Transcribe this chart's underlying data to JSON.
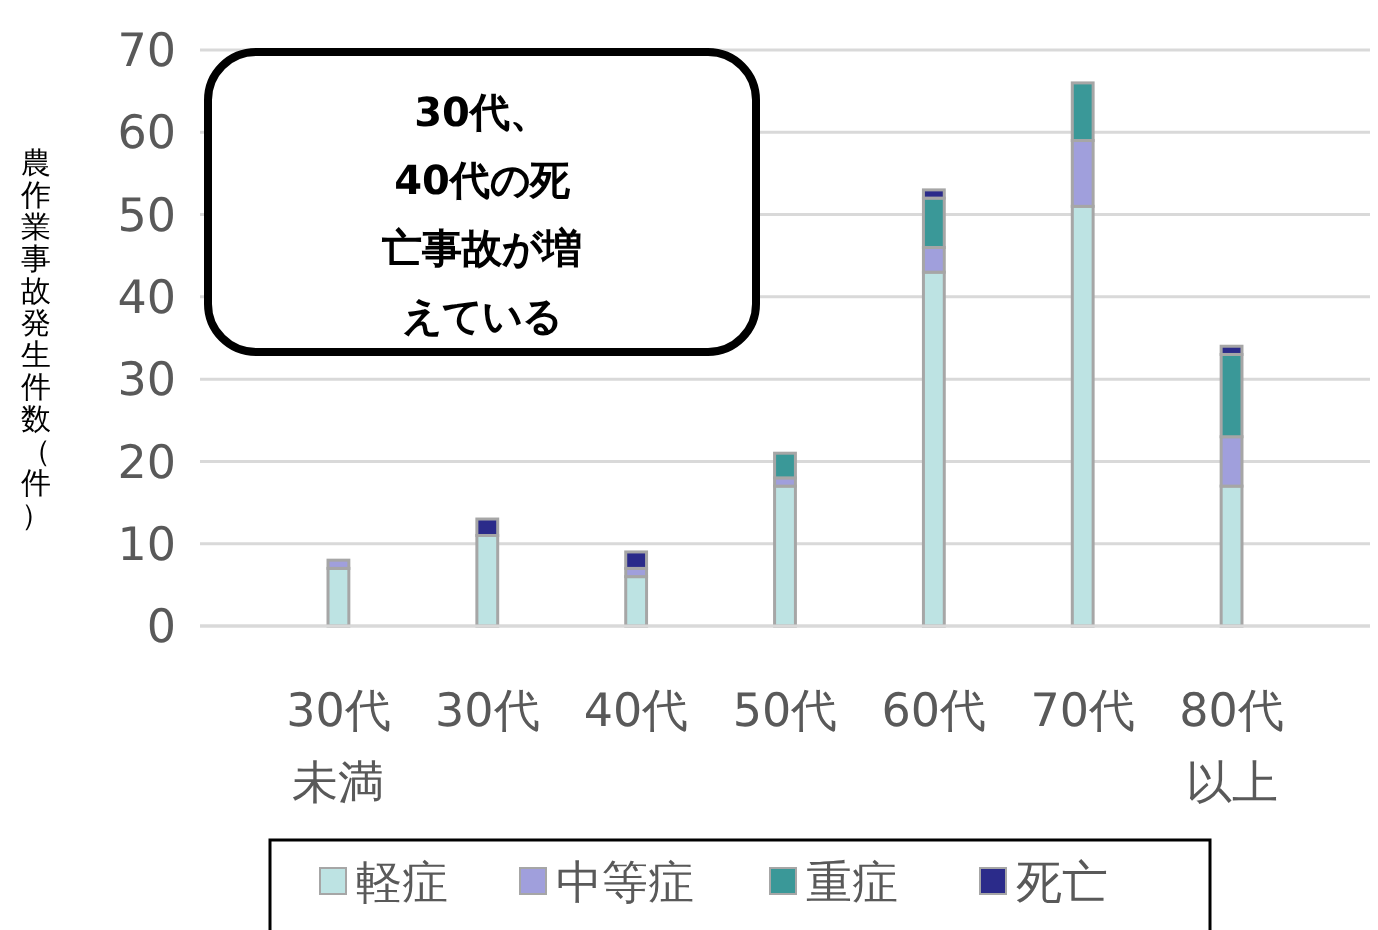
{
  "chart_data": {
    "type": "bar",
    "stacked": true,
    "ylabel": "農作業事故発生件数（件）",
    "categories": [
      "30代未満",
      "30代",
      "40代",
      "50代",
      "60代",
      "70代",
      "80代以上"
    ],
    "series": [
      {
        "name": "軽症",
        "color": "#bde3e3",
        "values": [
          7,
          11,
          6,
          17,
          43,
          51,
          17
        ]
      },
      {
        "name": "中等症",
        "color": "#a09fdc",
        "values": [
          1,
          0,
          1,
          1,
          3,
          8,
          6
        ]
      },
      {
        "name": "重症",
        "color": "#3a9898",
        "values": [
          0,
          0,
          0,
          3,
          6,
          7,
          10
        ]
      },
      {
        "name": "死亡",
        "color": "#2b2b8a",
        "values": [
          0,
          2,
          2,
          0,
          1,
          0,
          1
        ]
      }
    ],
    "ylim": [
      0,
      70
    ],
    "yticks": [
      0,
      10,
      20,
      30,
      40,
      50,
      60,
      70
    ],
    "grid": "y",
    "legend": "bottom",
    "annotations": [
      "30代、40代の死亡事故が増えている"
    ]
  }
}
